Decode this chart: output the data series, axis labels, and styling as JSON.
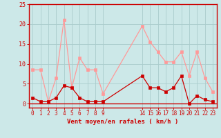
{
  "x_values": [
    0,
    1,
    2,
    3,
    4,
    5,
    6,
    7,
    8,
    9,
    14,
    15,
    16,
    17,
    18,
    19,
    20,
    21,
    22,
    23
  ],
  "rafales": [
    8.5,
    8.5,
    0.5,
    6.5,
    21,
    4,
    11.5,
    8.5,
    8.5,
    2.5,
    19.5,
    15.5,
    13,
    10.5,
    10.5,
    13,
    7,
    13,
    6.5,
    3
  ],
  "moyen": [
    1.5,
    0.5,
    0.5,
    1.5,
    4.5,
    4,
    1.5,
    0.5,
    0.5,
    0.5,
    7,
    4,
    4,
    3,
    4,
    7,
    0,
    2,
    1,
    0.5
  ],
  "x_tick_positions": [
    0,
    1,
    2,
    3,
    4,
    5,
    6,
    7,
    8,
    9,
    14,
    15,
    16,
    17,
    18,
    19,
    20,
    21,
    22,
    23
  ],
  "x_tick_labels": [
    "0",
    "1",
    "2",
    "3",
    "4",
    "5",
    "6",
    "7",
    "8",
    "9",
    "14",
    "15",
    "16",
    "17",
    "18",
    "19",
    "20",
    "21",
    "22",
    "23"
  ],
  "bg_color": "#cce8e8",
  "grid_color": "#aacccc",
  "line_color_rafales": "#ff9999",
  "line_color_moyen": "#cc0000",
  "xlabel": "Vent moyen/en rafales ( km/h )",
  "ylim": [
    -1,
    25
  ],
  "yticks": [
    0,
    5,
    10,
    15,
    20,
    25
  ],
  "ytick_labels": [
    "0",
    "5",
    "10",
    "15",
    "20",
    "25"
  ],
  "tick_color": "#cc0000",
  "spine_color": "#cc0000",
  "xlabel_color": "#cc0000"
}
